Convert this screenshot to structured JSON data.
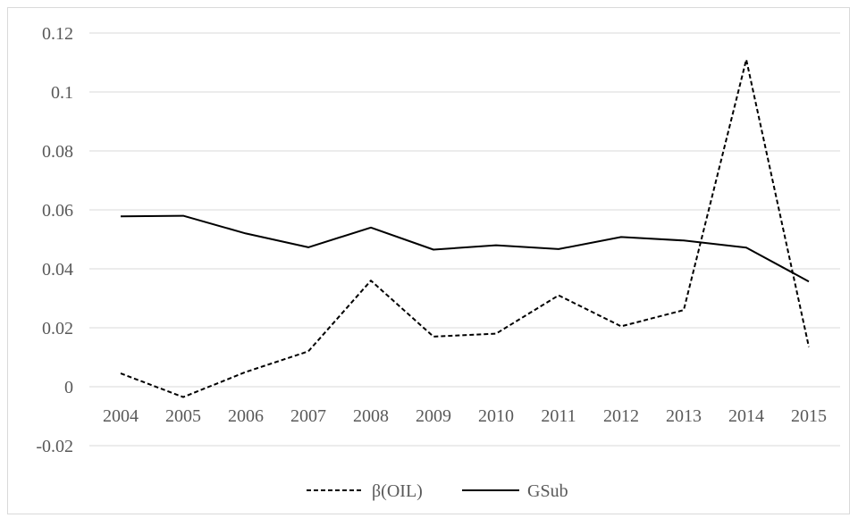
{
  "chart_data": {
    "type": "line",
    "categories": [
      "2004",
      "2005",
      "2006",
      "2007",
      "2008",
      "2009",
      "2010",
      "2011",
      "2012",
      "2013",
      "2014",
      "2015"
    ],
    "series": [
      {
        "name": "β(OIL)",
        "style": "dashed",
        "color": "#000000",
        "values": [
          0.0045,
          -0.0035,
          0.005,
          0.012,
          0.036,
          0.017,
          0.018,
          0.031,
          0.0205,
          0.026,
          0.111,
          0.0135
        ]
      },
      {
        "name": "GSub",
        "style": "solid",
        "color": "#000000",
        "values": [
          0.0578,
          0.058,
          0.052,
          0.0473,
          0.054,
          0.0465,
          0.048,
          0.0467,
          0.0508,
          0.0496,
          0.0472,
          0.0357
        ]
      }
    ],
    "y_ticks": [
      "-0.02",
      "0",
      "0.02",
      "0.04",
      "0.06",
      "0.08",
      "0.1",
      "0.12"
    ],
    "ylim": [
      -0.02,
      0.12
    ],
    "grid": true,
    "legend": "bottom-center"
  }
}
